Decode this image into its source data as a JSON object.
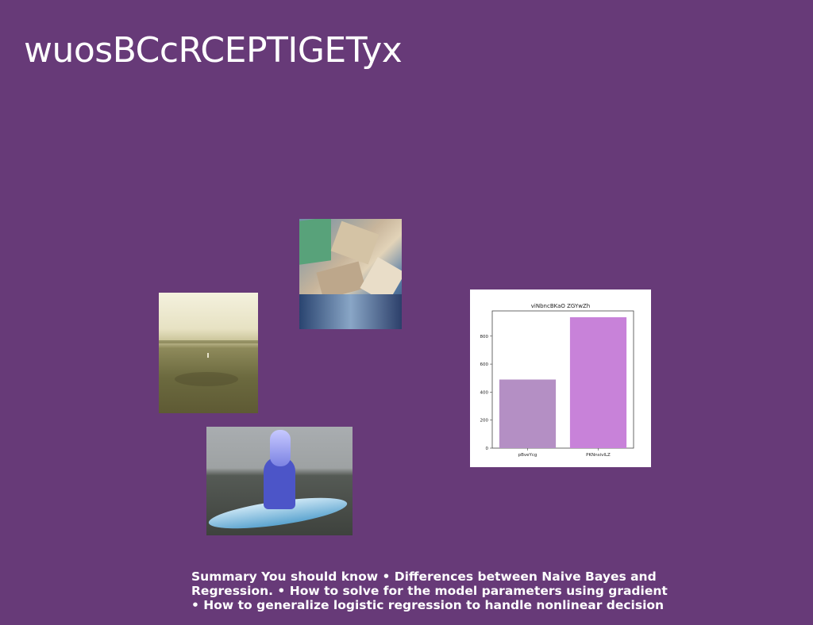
{
  "slide": {
    "title": "wuosBCcRCEPTIGETyx",
    "summary_lines": [
      "Summary You should know • Differences between Naive Bayes and",
      "Regression. • How to solve for the model parameters using gradient",
      "• How to generalize logistic regression to handle nonlinear decision"
    ]
  },
  "images": {
    "sea": "sea-photo",
    "city": "aerial-city-photo",
    "paddle": "paddleboard-photo"
  },
  "chart_data": {
    "type": "bar",
    "title": "viNbncBKaO ZGYwZh",
    "categories": [
      "pBveYcg",
      "PKNnsivILZ"
    ],
    "values": [
      490,
      935
    ],
    "colors": [
      "#b48fc4",
      "#c882d9"
    ],
    "ylim": [
      0,
      980
    ],
    "yticks": [
      0,
      200,
      400,
      600,
      800
    ],
    "xlabel": "",
    "ylabel": ""
  }
}
